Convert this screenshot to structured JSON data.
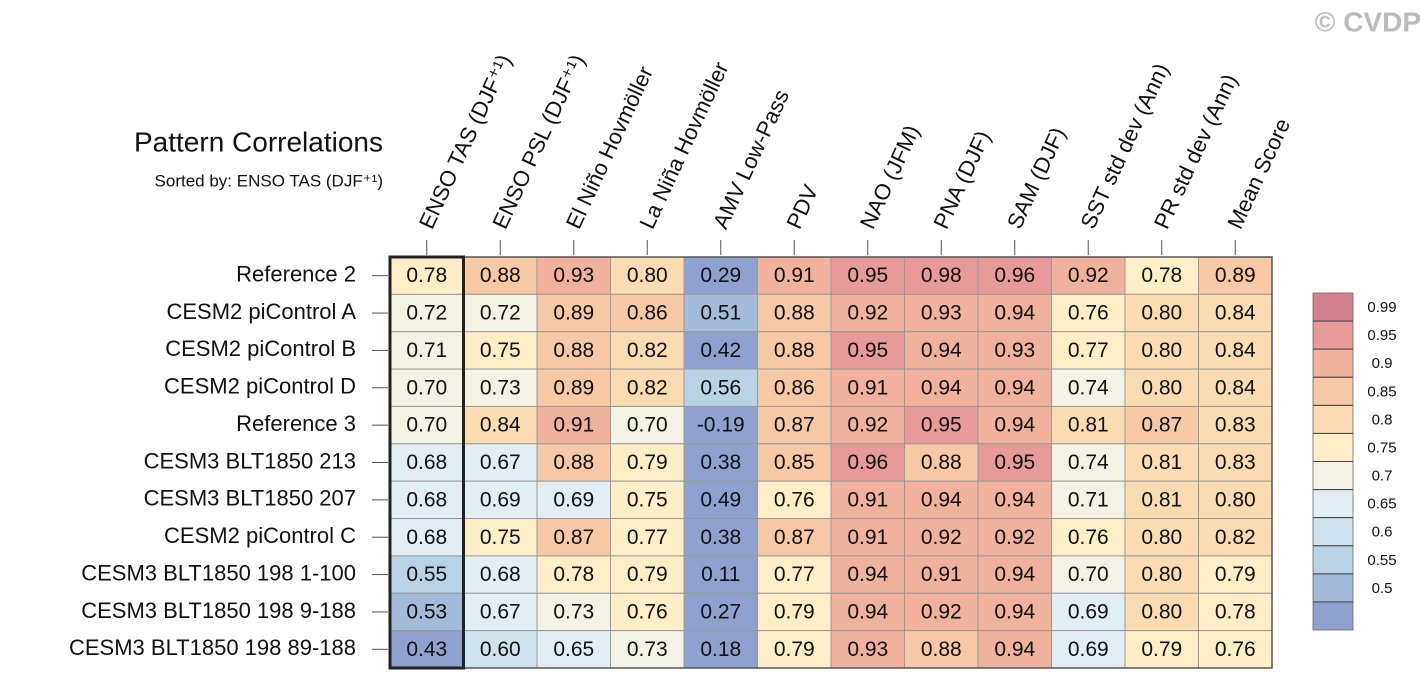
{
  "chart_data": {
    "type": "heatmap",
    "title": "Pattern Correlations",
    "subtitle": "Sorted by: ENSO TAS (DJF⁺¹)",
    "watermark": "© CVDP",
    "columns": [
      "ENSO TAS (DJF⁺¹)",
      "ENSO PSL (DJF⁺¹)",
      "El Niño Hovmöller",
      "La Niña Hovmöller",
      "AMV Low-Pass",
      "PDV",
      "NAO (JFM)",
      "PNA (DJF)",
      "SAM (DJF)",
      "SST std dev (Ann)",
      "PR std dev (Ann)",
      "Mean Score"
    ],
    "rows": [
      "Reference 2",
      "CESM2 piControl A",
      "CESM2 piControl B",
      "CESM2 piControl D",
      "Reference 3",
      "CESM3 BLT1850 213",
      "CESM3 BLT1850 207",
      "CESM2 piControl C",
      "CESM3 BLT1850 198 1-100",
      "CESM3 BLT1850 198 9-188",
      "CESM3 BLT1850 198 89-188"
    ],
    "values": [
      [
        0.78,
        0.88,
        0.93,
        0.8,
        0.29,
        0.91,
        0.95,
        0.98,
        0.96,
        0.92,
        0.78,
        0.89
      ],
      [
        0.72,
        0.72,
        0.89,
        0.86,
        0.51,
        0.88,
        0.92,
        0.93,
        0.94,
        0.76,
        0.8,
        0.84
      ],
      [
        0.71,
        0.75,
        0.88,
        0.82,
        0.42,
        0.88,
        0.95,
        0.94,
        0.93,
        0.77,
        0.8,
        0.84
      ],
      [
        0.7,
        0.73,
        0.89,
        0.82,
        0.56,
        0.86,
        0.91,
        0.94,
        0.94,
        0.74,
        0.8,
        0.84
      ],
      [
        0.7,
        0.84,
        0.91,
        0.7,
        -0.19,
        0.87,
        0.92,
        0.95,
        0.94,
        0.81,
        0.87,
        0.83
      ],
      [
        0.68,
        0.67,
        0.88,
        0.79,
        0.38,
        0.85,
        0.96,
        0.88,
        0.95,
        0.74,
        0.81,
        0.83
      ],
      [
        0.68,
        0.69,
        0.69,
        0.75,
        0.49,
        0.76,
        0.91,
        0.94,
        0.94,
        0.71,
        0.81,
        0.8
      ],
      [
        0.68,
        0.75,
        0.87,
        0.77,
        0.38,
        0.87,
        0.91,
        0.92,
        0.92,
        0.76,
        0.8,
        0.82
      ],
      [
        0.55,
        0.68,
        0.78,
        0.79,
        0.11,
        0.77,
        0.94,
        0.91,
        0.94,
        0.7,
        0.8,
        0.79
      ],
      [
        0.53,
        0.67,
        0.73,
        0.76,
        0.27,
        0.79,
        0.94,
        0.92,
        0.94,
        0.69,
        0.8,
        0.78
      ],
      [
        0.43,
        0.6,
        0.65,
        0.73,
        0.18,
        0.79,
        0.93,
        0.88,
        0.94,
        0.69,
        0.79,
        0.76
      ]
    ],
    "value_labels": [
      [
        "0.78",
        "0.88",
        "0.93",
        "0.80",
        "0.29",
        "0.91",
        "0.95",
        "0.98",
        "0.96",
        "0.92",
        "0.78",
        "0.89"
      ],
      [
        "0.72",
        "0.72",
        "0.89",
        "0.86",
        "0.51",
        "0.88",
        "0.92",
        "0.93",
        "0.94",
        "0.76",
        "0.80",
        "0.84"
      ],
      [
        "0.71",
        "0.75",
        "0.88",
        "0.82",
        "0.42",
        "0.88",
        "0.95",
        "0.94",
        "0.93",
        "0.77",
        "0.80",
        "0.84"
      ],
      [
        "0.70",
        "0.73",
        "0.89",
        "0.82",
        "0.56",
        "0.86",
        "0.91",
        "0.94",
        "0.94",
        "0.74",
        "0.80",
        "0.84"
      ],
      [
        "0.70",
        "0.84",
        "0.91",
        "0.70",
        "-0.19",
        "0.87",
        "0.92",
        "0.95",
        "0.94",
        "0.81",
        "0.87",
        "0.83"
      ],
      [
        "0.68",
        "0.67",
        "0.88",
        "0.79",
        "0.38",
        "0.85",
        "0.96",
        "0.88",
        "0.95",
        "0.74",
        "0.81",
        "0.83"
      ],
      [
        "0.68",
        "0.69",
        "0.69",
        "0.75",
        "0.49",
        "0.76",
        "0.91",
        "0.94",
        "0.94",
        "0.71",
        "0.81",
        "0.80"
      ],
      [
        "0.68",
        "0.75",
        "0.87",
        "0.77",
        "0.38",
        "0.87",
        "0.91",
        "0.92",
        "0.92",
        "0.76",
        "0.80",
        "0.82"
      ],
      [
        "0.55",
        "0.68",
        "0.78",
        "0.79",
        "0.11",
        "0.77",
        "0.94",
        "0.91",
        "0.94",
        "0.70",
        "0.80",
        "0.79"
      ],
      [
        "0.53",
        "0.67",
        "0.73",
        "0.76",
        "0.27",
        "0.79",
        "0.94",
        "0.92",
        "0.94",
        "0.69",
        "0.80",
        "0.78"
      ],
      [
        "0.43",
        "0.60",
        "0.65",
        "0.73",
        "0.18",
        "0.79",
        "0.93",
        "0.88",
        "0.94",
        "0.69",
        "0.79",
        "0.76"
      ]
    ],
    "levels": [
      0.99,
      0.95,
      0.9,
      0.85,
      0.8,
      0.75,
      0.7,
      0.65,
      0.6,
      0.55,
      0.5
    ],
    "colors": [
      "#d4808f",
      "#e79a98",
      "#f0b29c",
      "#f7c8a6",
      "#fbdcb2",
      "#fdeec8",
      "#f4f2e4",
      "#e2eef4",
      "#cee3ee",
      "#b8d2e6",
      "#a2bbdb",
      "#8fa2cf"
    ],
    "highlight_column": 0
  }
}
